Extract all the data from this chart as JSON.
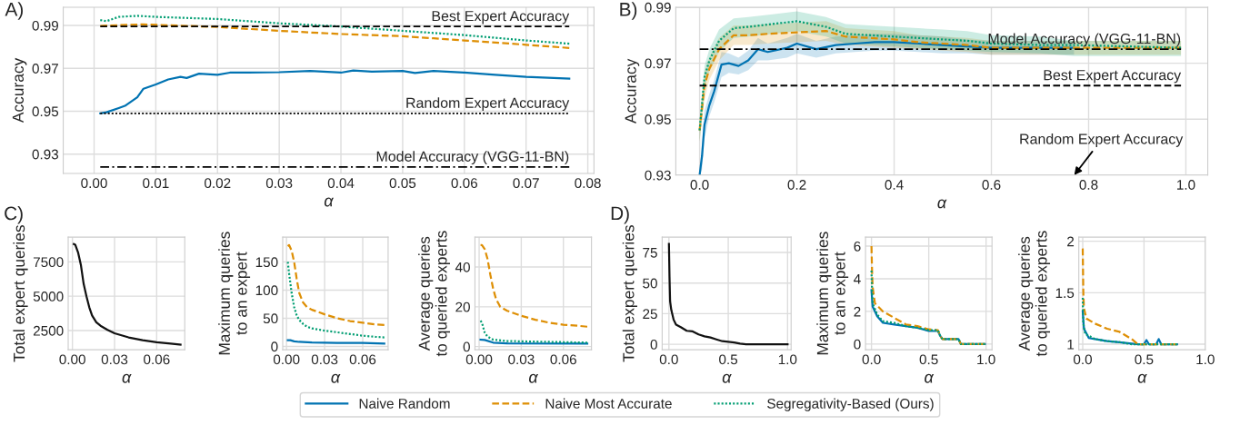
{
  "chart_data": [
    {
      "type": "line",
      "xlabel": "α",
      "ylabel": "Accuracy",
      "annotations": [
        "A)"
      ],
      "grid": true,
      "legend": "bottom",
      "xlim": [
        -0.005,
        0.081
      ],
      "ylim": [
        0.921,
        0.9985
      ],
      "xticks": [
        {
          "value": 0,
          "label": "0.00"
        },
        {
          "value": 0.01,
          "label": "0.01"
        },
        {
          "value": 0.02,
          "label": "0.02"
        },
        {
          "value": 0.03,
          "label": "0.03"
        },
        {
          "value": 0.04,
          "label": "0.04"
        },
        {
          "value": 0.05,
          "label": "0.05"
        },
        {
          "value": 0.06,
          "label": "0.06"
        },
        {
          "value": 0.07,
          "label": "0.07"
        },
        {
          "value": 0.08,
          "label": "0.08"
        }
      ],
      "yticks": [
        0.93,
        0.95,
        0.97,
        0.99
      ],
      "series": [
        {
          "name": "Naive Random",
          "color": "#0173b2",
          "line_style": "solid",
          "x": [
            0.001,
            0.002,
            0.004,
            0.005,
            0.007,
            0.008,
            0.01,
            0.012,
            0.014,
            0.015,
            0.017,
            0.02,
            0.022,
            0.025,
            0.03,
            0.035,
            0.04,
            0.042,
            0.045,
            0.05,
            0.052,
            0.055,
            0.06,
            0.065,
            0.07,
            0.077
          ],
          "values": [
            0.949,
            0.9495,
            0.9515,
            0.9525,
            0.9565,
            0.9605,
            0.9625,
            0.9648,
            0.966,
            0.9655,
            0.9675,
            0.967,
            0.968,
            0.968,
            0.9682,
            0.9688,
            0.968,
            0.969,
            0.9685,
            0.9688,
            0.9678,
            0.9688,
            0.968,
            0.967,
            0.966,
            0.9652
          ]
        },
        {
          "name": "Naive Most Accurate",
          "color": "#de8f05",
          "line_style": "dashed",
          "x": [
            0.001,
            0.008,
            0.015,
            0.02,
            0.03,
            0.04,
            0.05,
            0.055,
            0.06,
            0.07,
            0.077
          ],
          "values": [
            0.9898,
            0.9905,
            0.9898,
            0.9893,
            0.9875,
            0.986,
            0.985,
            0.984,
            0.983,
            0.981,
            0.9795
          ]
        },
        {
          "name": "Segregativity-Based (Ours)",
          "color": "#029e73",
          "line_style": "dotted",
          "x": [
            0.001,
            0.002,
            0.004,
            0.007,
            0.01,
            0.015,
            0.02,
            0.03,
            0.04,
            0.05,
            0.06,
            0.07,
            0.077
          ],
          "values": [
            0.9925,
            0.992,
            0.994,
            0.9945,
            0.994,
            0.9935,
            0.993,
            0.991,
            0.9895,
            0.9875,
            0.9855,
            0.983,
            0.9815
          ]
        }
      ],
      "ref_lines": [
        {
          "axis": "y",
          "value": 0.9895,
          "label": "Best Expert Accuracy",
          "color": "#000000",
          "line_style": "dashed"
        },
        {
          "axis": "y",
          "value": 0.949,
          "label": "Random Expert Accuracy",
          "color": "#000000",
          "line_style": "dotted"
        },
        {
          "axis": "y",
          "value": 0.924,
          "label": "Model Accuracy (VGG-11-BN)",
          "color": "#000000",
          "line_style": "dashdot"
        }
      ]
    },
    {
      "type": "line",
      "xlabel": "α",
      "ylabel": "Accuracy",
      "grid": true,
      "annotations": [
        "B)",
        "Random Expert Accuracy"
      ],
      "xlim": [
        -0.049,
        1.045
      ],
      "ylim": [
        0.93,
        0.99
      ],
      "xticks": [
        {
          "value": 0,
          "label": "0.0"
        },
        0.2,
        0.4,
        0.6,
        0.8,
        {
          "value": 1,
          "label": "1.0"
        }
      ],
      "yticks": [
        0.93,
        0.95,
        0.97,
        0.99
      ],
      "series": [
        {
          "color": "#0173b2",
          "line_style": "solid",
          "x": [
            0,
            0.005,
            0.01,
            0.02,
            0.03,
            0.045,
            0.06,
            0.08,
            0.1,
            0.12,
            0.14,
            0.18,
            0.2,
            0.24,
            0.28,
            0.32,
            0.36,
            0.4,
            0.45,
            0.5,
            0.55,
            0.6,
            0.7,
            0.77
          ],
          "values": [
            0.93,
            0.937,
            0.948,
            0.955,
            0.96,
            0.9695,
            0.97,
            0.969,
            0.971,
            0.975,
            0.974,
            0.9755,
            0.977,
            0.975,
            0.9765,
            0.977,
            0.9775,
            0.9775,
            0.977,
            0.9765,
            0.976,
            0.9755,
            0.9755,
            0.9755
          ],
          "lower": [
            0.93,
            0.932,
            0.943,
            0.951,
            0.956,
            0.965,
            0.9665,
            0.966,
            0.9675,
            0.971,
            0.971,
            0.972,
            0.9735,
            0.972,
            0.9735,
            0.974,
            0.9745,
            0.9745,
            0.974,
            0.9735,
            0.9735,
            0.973,
            0.973,
            0.973
          ],
          "upper": [
            0.93,
            0.942,
            0.953,
            0.959,
            0.964,
            0.974,
            0.9735,
            0.972,
            0.9745,
            0.979,
            0.977,
            0.979,
            0.9805,
            0.978,
            0.9795,
            0.98,
            0.9805,
            0.9805,
            0.98,
            0.9795,
            0.9785,
            0.978,
            0.978,
            0.978
          ]
        },
        {
          "color": "#de8f05",
          "line_style": "dashed",
          "x": [
            0,
            0.01,
            0.02,
            0.04,
            0.07,
            0.1,
            0.14,
            0.2,
            0.26,
            0.3,
            0.4,
            0.45,
            0.5,
            0.55,
            0.6,
            0.7,
            0.99
          ],
          "values": [
            0.946,
            0.962,
            0.968,
            0.975,
            0.98,
            0.98,
            0.9805,
            0.981,
            0.9815,
            0.9795,
            0.9785,
            0.9775,
            0.977,
            0.9765,
            0.9755,
            0.9755,
            0.9755
          ],
          "lower": [
            0.942,
            0.957,
            0.964,
            0.971,
            0.9765,
            0.9765,
            0.977,
            0.9775,
            0.978,
            0.9765,
            0.9755,
            0.975,
            0.9745,
            0.974,
            0.973,
            0.973,
            0.973
          ],
          "upper": [
            0.95,
            0.967,
            0.972,
            0.979,
            0.9835,
            0.9835,
            0.984,
            0.9845,
            0.985,
            0.9825,
            0.9815,
            0.98,
            0.9795,
            0.979,
            0.978,
            0.978,
            0.978
          ]
        },
        {
          "color": "#029e73",
          "line_style": "dotted",
          "x": [
            0,
            0.01,
            0.02,
            0.04,
            0.07,
            0.1,
            0.15,
            0.2,
            0.26,
            0.3,
            0.4,
            0.45,
            0.5,
            0.55,
            0.6,
            0.7,
            0.77,
            0.99
          ],
          "values": [
            0.946,
            0.965,
            0.971,
            0.978,
            0.9825,
            0.983,
            0.984,
            0.985,
            0.983,
            0.9805,
            0.9795,
            0.979,
            0.9785,
            0.978,
            0.977,
            0.9765,
            0.9765,
            0.9755
          ],
          "lower": [
            0.942,
            0.961,
            0.967,
            0.974,
            0.979,
            0.9795,
            0.9805,
            0.9815,
            0.9795,
            0.977,
            0.976,
            0.9755,
            0.975,
            0.9745,
            0.974,
            0.9735,
            0.9725,
            0.9725
          ],
          "upper": [
            0.95,
            0.969,
            0.975,
            0.982,
            0.986,
            0.9865,
            0.9875,
            0.9885,
            0.9865,
            0.984,
            0.983,
            0.9825,
            0.982,
            0.9815,
            0.98,
            0.9795,
            0.978,
            0.978
          ]
        }
      ],
      "ref_lines": [
        {
          "axis": "y",
          "value": 0.975,
          "label": "Model Accuracy (VGG-11-BN)",
          "color": "#000000",
          "line_style": "dashdot"
        },
        {
          "axis": "y",
          "value": 0.962,
          "label": "Best Expert Accuracy",
          "color": "#000000",
          "line_style": "dashed"
        }
      ]
    },
    {
      "type": "line",
      "xlabel": "α",
      "ylabel": "Total expert queries",
      "annotations": [
        "C)"
      ],
      "grid": true,
      "xlim": [
        -0.003,
        0.08
      ],
      "ylim": [
        1100,
        9300
      ],
      "xticks": [
        {
          "value": 0,
          "label": "0.00"
        },
        {
          "value": 0.03,
          "label": "0.03"
        },
        {
          "value": 0.06,
          "label": "0.06"
        }
      ],
      "yticks": [
        2500,
        5000,
        7500
      ],
      "series": [
        {
          "color": "#111111",
          "line_style": "solid",
          "x": [
            0.001,
            0.002,
            0.004,
            0.006,
            0.008,
            0.01,
            0.012,
            0.014,
            0.017,
            0.02,
            0.025,
            0.03,
            0.04,
            0.05,
            0.06,
            0.07,
            0.077
          ],
          "values": [
            8800,
            8750,
            8200,
            7300,
            5900,
            5000,
            4200,
            3600,
            3100,
            2850,
            2550,
            2300,
            2000,
            1800,
            1650,
            1550,
            1480
          ]
        }
      ]
    },
    {
      "type": "line",
      "xlabel": "α",
      "ylabel": "Maximum queries\nto an expert",
      "grid": true,
      "xlim": [
        -0.003,
        0.08
      ],
      "ylim": [
        -6,
        194
      ],
      "xticks": [
        {
          "value": 0,
          "label": "0.00"
        },
        {
          "value": 0.03,
          "label": "0.03"
        },
        {
          "value": 0.06,
          "label": "0.06"
        }
      ],
      "yticks": [
        0,
        50,
        100,
        150
      ],
      "series": [
        {
          "color": "#0173b2",
          "line_style": "solid",
          "x": [
            0.001,
            0.003,
            0.006,
            0.01,
            0.02,
            0.04,
            0.06,
            0.077
          ],
          "values": [
            11,
            11,
            9,
            8,
            7,
            6,
            6,
            5
          ]
        },
        {
          "color": "#de8f05",
          "line_style": "dashed",
          "x": [
            0.001,
            0.002,
            0.004,
            0.006,
            0.008,
            0.01,
            0.013,
            0.016,
            0.02,
            0.03,
            0.04,
            0.05,
            0.06,
            0.07,
            0.077
          ],
          "values": [
            178,
            180,
            170,
            150,
            120,
            95,
            78,
            70,
            65,
            57,
            50,
            45,
            42,
            39,
            38
          ]
        },
        {
          "color": "#029e73",
          "line_style": "dotted",
          "x": [
            0.001,
            0.002,
            0.004,
            0.006,
            0.008,
            0.01,
            0.013,
            0.016,
            0.02,
            0.03,
            0.04,
            0.05,
            0.06,
            0.07,
            0.077
          ],
          "values": [
            150,
            130,
            95,
            70,
            55,
            47,
            40,
            35,
            32,
            28,
            25,
            22,
            19,
            17,
            16
          ]
        }
      ]
    },
    {
      "type": "line",
      "xlabel": "α",
      "ylabel": "Average queries\nto queried experts",
      "grid": true,
      "xlim": [
        -0.003,
        0.08
      ],
      "ylim": [
        -1.6,
        55
      ],
      "xticks": [
        {
          "value": 0,
          "label": "0.00"
        },
        {
          "value": 0.03,
          "label": "0.03"
        },
        {
          "value": 0.06,
          "label": "0.06"
        }
      ],
      "yticks": [
        0,
        20,
        40
      ],
      "series": [
        {
          "color": "#0173b2",
          "line_style": "solid",
          "x": [
            0.001,
            0.004,
            0.01,
            0.02,
            0.077
          ],
          "values": [
            3.5,
            3.3,
            2,
            1.6,
            1.5
          ]
        },
        {
          "color": "#de8f05",
          "line_style": "dashed",
          "x": [
            0.001,
            0.002,
            0.004,
            0.006,
            0.008,
            0.01,
            0.012,
            0.015,
            0.02,
            0.03,
            0.04,
            0.05,
            0.06,
            0.07,
            0.077
          ],
          "values": [
            51,
            51,
            49,
            44,
            36,
            29,
            24,
            20,
            18,
            15.5,
            13.5,
            12,
            11,
            10.5,
            10
          ]
        },
        {
          "color": "#029e73",
          "line_style": "dotted",
          "x": [
            0.001,
            0.002,
            0.004,
            0.006,
            0.01,
            0.02,
            0.04,
            0.077
          ],
          "values": [
            13,
            12,
            7,
            5,
            3.5,
            2.8,
            2.5,
            2
          ]
        }
      ]
    },
    {
      "type": "line",
      "xlabel": "α",
      "ylabel": "Total expert queries",
      "annotations": [
        "D)"
      ],
      "grid": true,
      "xlim": [
        -0.057,
        1.03
      ],
      "ylim": [
        -4.5,
        87.5
      ],
      "xticks": [
        {
          "value": 0,
          "label": "0.0"
        },
        0.5,
        {
          "value": 1,
          "label": "1.0"
        }
      ],
      "yticks": [
        0,
        25,
        50,
        75
      ],
      "series": [
        {
          "color": "#111111",
          "line_style": "solid",
          "x": [
            0.0,
            0.005,
            0.01,
            0.02,
            0.04,
            0.06,
            0.1,
            0.15,
            0.2,
            0.25,
            0.3,
            0.35,
            0.4,
            0.45,
            0.5,
            0.55,
            0.6,
            0.65,
            1.0
          ],
          "values": [
            82,
            55,
            35,
            28,
            20,
            16,
            14,
            11,
            10.5,
            8,
            6.5,
            5.5,
            4,
            2.5,
            2,
            1.5,
            0.5,
            0,
            0
          ]
        }
      ]
    },
    {
      "type": "line",
      "xlabel": "α",
      "ylabel": "Maximum queries\nto an expert",
      "grid": true,
      "xlim": [
        -0.052,
        1.052
      ],
      "ylim": [
        -0.35,
        6.55
      ],
      "xticks": [
        {
          "value": 0,
          "label": "0.0"
        },
        0.5,
        {
          "value": 1,
          "label": "1.0"
        }
      ],
      "yticks": [
        0,
        2,
        4,
        6
      ],
      "series": [
        {
          "color": "#0173b2",
          "line_style": "solid",
          "x": [
            0.0,
            0.01,
            0.05,
            0.1,
            0.2,
            0.3,
            0.4,
            0.5,
            0.58,
            0.6,
            0.62,
            0.76,
            0.78,
            0.99
          ],
          "values": [
            3.3,
            2.3,
            1.7,
            1.3,
            1.2,
            1.1,
            1.0,
            0.8,
            0.8,
            0.5,
            0.3,
            0.3,
            0,
            0
          ]
        },
        {
          "color": "#de8f05",
          "line_style": "dashed",
          "x": [
            0.0,
            0.005,
            0.01,
            0.03,
            0.1,
            0.2,
            0.3,
            0.4,
            0.5,
            0.58,
            0.6,
            0.62,
            0.76,
            0.78,
            0.99
          ],
          "values": [
            6.0,
            4.5,
            3.5,
            2.5,
            2.0,
            1.6,
            1.2,
            1.1,
            0.9,
            0.85,
            0.5,
            0.3,
            0.3,
            0,
            0
          ]
        },
        {
          "color": "#029e73",
          "line_style": "dotted",
          "x": [
            0.0,
            0.005,
            0.01,
            0.05,
            0.1,
            0.2,
            0.3,
            0.4,
            0.5,
            0.58,
            0.6,
            0.62,
            0.76,
            0.78,
            0.99
          ],
          "values": [
            4.5,
            3.3,
            2.5,
            1.8,
            1.4,
            1.3,
            1.1,
            1.0,
            0.85,
            0.85,
            0.5,
            0.3,
            0.3,
            0,
            0
          ]
        }
      ]
    },
    {
      "type": "line",
      "xlabel": "α",
      "ylabel": "Average queries\nto queried experts",
      "grid": true,
      "xlim": [
        -0.032,
        1.0
      ],
      "ylim": [
        0.946,
        2.04
      ],
      "xticks": [
        {
          "value": 0,
          "label": "0.0"
        },
        0.5,
        {
          "value": 1,
          "label": "1.0"
        }
      ],
      "yticks": [
        1,
        1.5,
        2
      ],
      "series": [
        {
          "color": "#0173b2",
          "line_style": "solid",
          "x": [
            0.0,
            0.01,
            0.05,
            0.1,
            0.2,
            0.3,
            0.45,
            0.5,
            0.52,
            0.54,
            0.6,
            0.62,
            0.64,
            0.77
          ],
          "values": [
            1.32,
            1.15,
            1.06,
            1.05,
            1.03,
            1.02,
            1.0,
            1.0,
            1.04,
            1.0,
            1.0,
            1.05,
            1.0,
            1.0
          ]
        },
        {
          "color": "#de8f05",
          "line_style": "dashed",
          "x": [
            0.0,
            0.005,
            0.01,
            0.03,
            0.1,
            0.2,
            0.3,
            0.4,
            0.45,
            0.77
          ],
          "values": [
            1.93,
            1.5,
            1.35,
            1.25,
            1.2,
            1.15,
            1.12,
            1.05,
            1.0,
            1.0
          ]
        },
        {
          "color": "#029e73",
          "line_style": "dotted",
          "x": [
            0.0,
            0.005,
            0.02,
            0.1,
            0.2,
            0.3,
            0.4,
            0.77
          ],
          "values": [
            1.45,
            1.2,
            1.1,
            1.05,
            1.03,
            1.02,
            1.0,
            1.0
          ]
        }
      ]
    }
  ]
}
